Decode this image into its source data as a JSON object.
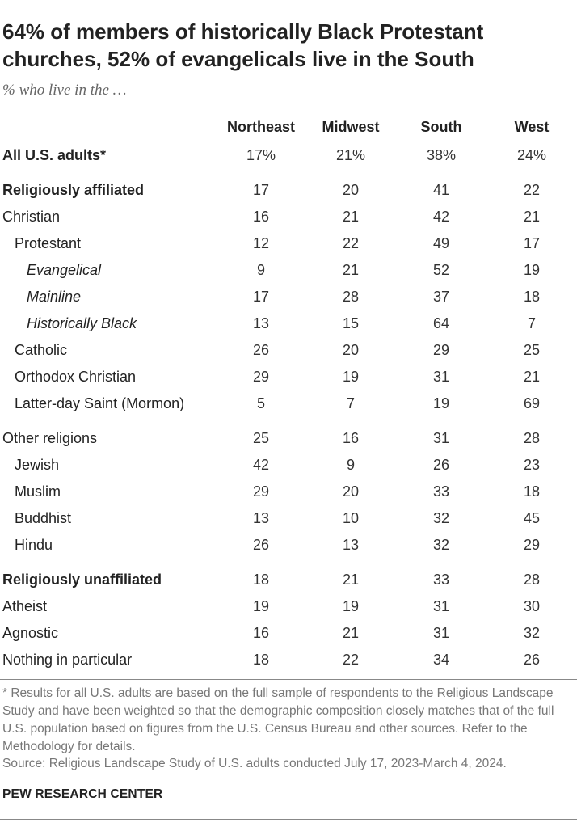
{
  "chart_data": {
    "type": "table",
    "title": "64% of members of historically Black Protestant churches, 52% of evangelicals live in the South",
    "subtitle": "% who live in the …",
    "columns": [
      "Northeast",
      "Midwest",
      "South",
      "West"
    ],
    "rows": [
      {
        "label": "All U.S. adults*",
        "style": "bold",
        "indent": 0,
        "values": [
          "17%",
          "21%",
          "38%",
          "24%"
        ]
      },
      {
        "label": "Religiously affiliated",
        "style": "bold",
        "indent": 0,
        "values": [
          "17",
          "20",
          "41",
          "22"
        ]
      },
      {
        "label": "Christian",
        "style": "normal",
        "indent": 0,
        "values": [
          "16",
          "21",
          "42",
          "21"
        ]
      },
      {
        "label": "Protestant",
        "style": "normal",
        "indent": 1,
        "values": [
          "12",
          "22",
          "49",
          "17"
        ]
      },
      {
        "label": "Evangelical",
        "style": "italic",
        "indent": 2,
        "values": [
          "9",
          "21",
          "52",
          "19"
        ]
      },
      {
        "label": "Mainline",
        "style": "italic",
        "indent": 2,
        "values": [
          "17",
          "28",
          "37",
          "18"
        ]
      },
      {
        "label": "Historically Black",
        "style": "italic",
        "indent": 2,
        "values": [
          "13",
          "15",
          "64",
          "7"
        ]
      },
      {
        "label": "Catholic",
        "style": "normal",
        "indent": 1,
        "values": [
          "26",
          "20",
          "29",
          "25"
        ]
      },
      {
        "label": "Orthodox Christian",
        "style": "normal",
        "indent": 1,
        "values": [
          "29",
          "19",
          "31",
          "21"
        ]
      },
      {
        "label": "Latter-day Saint (Mormon)",
        "style": "normal",
        "indent": 1,
        "values": [
          "5",
          "7",
          "19",
          "69"
        ]
      },
      {
        "label": "Other religions",
        "style": "normal",
        "indent": 0,
        "values": [
          "25",
          "16",
          "31",
          "28"
        ]
      },
      {
        "label": "Jewish",
        "style": "normal",
        "indent": 1,
        "values": [
          "42",
          "9",
          "26",
          "23"
        ]
      },
      {
        "label": "Muslim",
        "style": "normal",
        "indent": 1,
        "values": [
          "29",
          "20",
          "33",
          "18"
        ]
      },
      {
        "label": "Buddhist",
        "style": "normal",
        "indent": 1,
        "values": [
          "13",
          "10",
          "32",
          "45"
        ]
      },
      {
        "label": "Hindu",
        "style": "normal",
        "indent": 1,
        "values": [
          "26",
          "13",
          "32",
          "29"
        ]
      },
      {
        "label": "Religiously unaffiliated",
        "style": "bold",
        "indent": 0,
        "values": [
          "18",
          "21",
          "33",
          "28"
        ]
      },
      {
        "label": "Atheist",
        "style": "normal",
        "indent": 0,
        "values": [
          "19",
          "19",
          "31",
          "30"
        ]
      },
      {
        "label": "Agnostic",
        "style": "normal",
        "indent": 0,
        "values": [
          "16",
          "21",
          "31",
          "32"
        ]
      },
      {
        "label": "Nothing in particular",
        "style": "normal",
        "indent": 0,
        "values": [
          "18",
          "22",
          "34",
          "26"
        ]
      }
    ]
  },
  "footnote": "* Results for all U.S. adults are based on the full sample of respondents to the Religious Landscape Study and have been weighted so that the demographic composition closely matches that of the full U.S. population based on figures from the U.S. Census Bureau and other sources. Refer to the Methodology for details.",
  "source": "Source: Religious Landscape Study of U.S. adults conducted July 17, 2023-March 4, 2024.",
  "brand": "PEW RESEARCH CENTER",
  "colors": {
    "text": "#222222",
    "muted": "#777777",
    "rule": "#888888"
  }
}
